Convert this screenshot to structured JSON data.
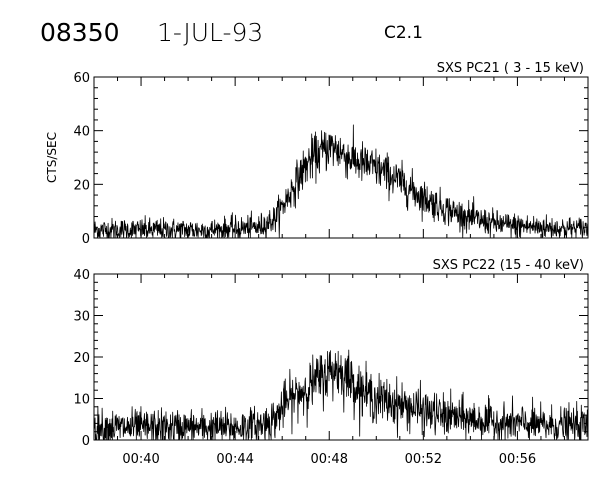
{
  "header": {
    "event_id": "08350",
    "date": "1-JUL-93",
    "flare_class": "C2.1"
  },
  "chart_data": [
    {
      "type": "line",
      "title": "SXS PC21  (  3 - 15 keV)",
      "ylabel": "CTS/SEC",
      "xlabel": "",
      "ylim": [
        0,
        60
      ],
      "yticks": [
        0,
        20,
        40,
        60
      ],
      "xlim": [
        "00:38:00",
        "00:59:00"
      ],
      "xticks": [
        "00:40",
        "00:44",
        "00:48",
        "00:52",
        "00:56"
      ],
      "grid": false,
      "series": [
        {
          "x": [
            "00:38:00",
            "00:39:00",
            "00:40:00",
            "00:41:00",
            "00:42:00",
            "00:43:00",
            "00:44:00",
            "00:45:00",
            "00:45:40",
            "00:46:10",
            "00:46:40",
            "00:47:10",
            "00:47:40",
            "00:48:00",
            "00:48:20",
            "00:48:50",
            "00:49:20",
            "00:50:00",
            "00:50:40",
            "00:51:20",
            "00:52:00",
            "00:52:40",
            "00:53:20",
            "00:54:00",
            "00:54:40",
            "00:55:20",
            "00:56:00",
            "00:57:00",
            "00:58:00",
            "00:59:00"
          ],
          "y": [
            3,
            3,
            3,
            3,
            3,
            3,
            3.5,
            4,
            7,
            14,
            22,
            29,
            32,
            34,
            33,
            30,
            28,
            26,
            23,
            19,
            15,
            12,
            9.5,
            7.5,
            6,
            5,
            4.5,
            4,
            3.5,
            3.5
          ]
        }
      ]
    },
    {
      "type": "line",
      "title": "SXS PC22  (15 - 40 keV)",
      "ylabel": "",
      "xlabel": "",
      "ylim": [
        0,
        40
      ],
      "yticks": [
        0,
        10,
        20,
        30,
        40
      ],
      "xlim": [
        "00:38:00",
        "00:59:00"
      ],
      "xticks": [
        "00:40",
        "00:44",
        "00:48",
        "00:52",
        "00:56"
      ],
      "grid": false,
      "series": [
        {
          "x": [
            "00:38:00",
            "00:39:00",
            "00:40:00",
            "00:41:00",
            "00:42:00",
            "00:43:00",
            "00:44:00",
            "00:45:00",
            "00:45:40",
            "00:46:10",
            "00:46:40",
            "00:47:10",
            "00:47:40",
            "00:48:00",
            "00:48:20",
            "00:48:50",
            "00:49:20",
            "00:50:00",
            "00:50:40",
            "00:51:20",
            "00:52:00",
            "00:52:40",
            "00:53:20",
            "00:54:00",
            "00:54:40",
            "00:55:20",
            "00:56:00",
            "00:57:00",
            "00:58:00",
            "00:59:00"
          ],
          "y": [
            3,
            3,
            3,
            3,
            3,
            3,
            3,
            3.5,
            5,
            9,
            11,
            13,
            15,
            16.5,
            17,
            15,
            12,
            10,
            9,
            8,
            7,
            6,
            5.5,
            5,
            4.5,
            4,
            4,
            3.5,
            3.5,
            3.5
          ]
        }
      ]
    }
  ]
}
